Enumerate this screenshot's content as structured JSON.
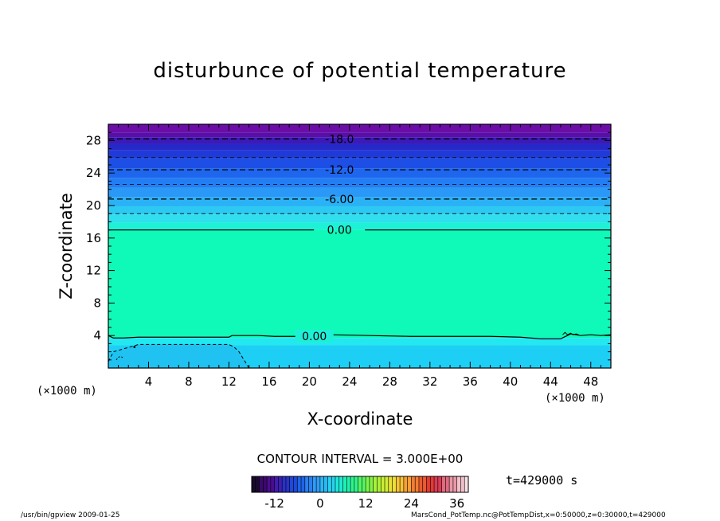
{
  "chart_data": {
    "type": "contour",
    "title": "disturbunce of potential temperature",
    "xlabel": "X-coordinate",
    "ylabel": "Z-coordinate",
    "x_unit": "(×1000 m)",
    "y_unit": "(×1000 m)",
    "xlim": [
      0,
      50
    ],
    "ylim": [
      0,
      30
    ],
    "x_ticks": [
      4,
      8,
      12,
      16,
      20,
      24,
      28,
      32,
      36,
      40,
      44,
      48
    ],
    "y_ticks": [
      4,
      8,
      12,
      16,
      20,
      24,
      28
    ],
    "contour_interval": "CONTOUR INTERVAL = 3.000E+00",
    "time_label": "t=429000 s",
    "colorbar": {
      "range": [
        -18,
        39
      ],
      "ticks": [
        -12,
        0,
        12,
        24,
        36
      ],
      "colors": [
        "#1a0a2e",
        "#3a0a6b",
        "#4b0c8f",
        "#3d1fb0",
        "#2a32c9",
        "#1e4ad9",
        "#1f64e8",
        "#2a80f2",
        "#2f9cf7",
        "#2ab8f5",
        "#26d2f0",
        "#22e8d8",
        "#20f0b0",
        "#30f58a",
        "#55f566",
        "#80f548",
        "#a8f23a",
        "#cdee36",
        "#ecdf36",
        "#f7c236",
        "#f7a034",
        "#f27e33",
        "#eb5a31",
        "#e33a33",
        "#dc3a55",
        "#e06a80",
        "#e898a8",
        "#f0c0c8",
        "#f8e0e4"
      ]
    },
    "fill_bands": [
      {
        "z0": 29.0,
        "z1": 30.0,
        "color": "#6b0ea8"
      },
      {
        "z0": 28.4,
        "z1": 29.0,
        "color": "#5a0ea8"
      },
      {
        "z0": 27.6,
        "z1": 28.4,
        "color": "#3b1ab8"
      },
      {
        "z0": 26.8,
        "z1": 27.6,
        "color": "#2728c8"
      },
      {
        "z0": 25.8,
        "z1": 26.8,
        "color": "#1f3ad8"
      },
      {
        "z0": 24.6,
        "z1": 25.8,
        "color": "#1d4fe6"
      },
      {
        "z0": 23.4,
        "z1": 24.6,
        "color": "#1f66ee"
      },
      {
        "z0": 22.2,
        "z1": 23.4,
        "color": "#237ef3"
      },
      {
        "z0": 21.0,
        "z1": 22.2,
        "color": "#2a98f6"
      },
      {
        "z0": 19.9,
        "z1": 21.0,
        "color": "#2bb2f6"
      },
      {
        "z0": 18.9,
        "z1": 19.9,
        "color": "#2ccaf3"
      },
      {
        "z0": 17.9,
        "z1": 18.9,
        "color": "#30e0ee"
      },
      {
        "z0": 17.0,
        "z1": 17.9,
        "color": "#1ef2d6"
      },
      {
        "z0": 3.7,
        "z1": 17.0,
        "color": "#0ffab8"
      },
      {
        "z0": 2.8,
        "z1": 3.7,
        "color": "#22e8f0"
      },
      {
        "z0": 0.0,
        "z1": 2.8,
        "color": "#1ecff5"
      }
    ],
    "contours": [
      {
        "value": -18.0,
        "z": 28.2,
        "style": "dashed",
        "label": "-18.0"
      },
      {
        "value": -15.0,
        "z": 25.9,
        "style": "dashed",
        "label": ""
      },
      {
        "value": -12.0,
        "z": 24.4,
        "style": "dashed",
        "label": "-12.0"
      },
      {
        "value": -9.0,
        "z": 22.6,
        "style": "dashed",
        "label": ""
      },
      {
        "value": -6.0,
        "z": 20.8,
        "style": "dashed",
        "label": "-6.00"
      },
      {
        "value": -3.0,
        "z": 19.0,
        "style": "dashed",
        "label": ""
      },
      {
        "value": 0.0,
        "z": 17.0,
        "style": "solid",
        "label": "0.00"
      }
    ],
    "surface_contour": {
      "value": 0.0,
      "label": "0.00",
      "x": [
        0,
        0.5,
        1.5,
        3,
        6,
        9,
        12,
        12.3,
        13,
        15,
        16.5,
        19,
        22,
        26,
        30,
        34,
        38,
        41,
        43,
        44,
        45,
        46,
        47,
        48,
        49,
        50
      ],
      "z": [
        4.0,
        3.7,
        3.7,
        3.8,
        3.8,
        3.8,
        3.8,
        4.0,
        4.0,
        4.0,
        3.9,
        3.9,
        4.1,
        4.0,
        3.9,
        3.9,
        3.9,
        3.8,
        3.6,
        3.6,
        3.6,
        4.2,
        4.0,
        4.1,
        4.0,
        4.1
      ]
    },
    "cold_pool": {
      "x": [
        0,
        0.5,
        3,
        8,
        12,
        12.5,
        13,
        13.5,
        14
      ],
      "z": [
        0.8,
        2.0,
        2.9,
        2.9,
        2.9,
        2.6,
        2.0,
        1.0,
        0.0
      ]
    }
  },
  "footer": {
    "left": "/usr/bin/gpview   2009-01-25",
    "right": "MarsCond_PotTemp.nc@PotTempDist,x=0:50000,z=0:30000,t=429000"
  }
}
